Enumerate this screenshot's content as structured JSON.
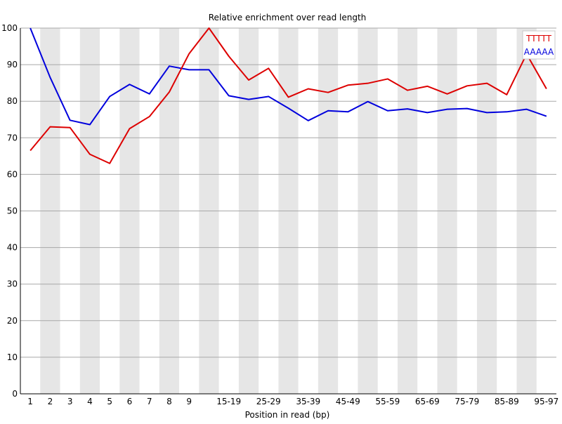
{
  "chart_data": {
    "type": "line",
    "title": "Relative enrichment over read length",
    "xlabel": "Position in read (bp)",
    "ylabel": "",
    "ylim": [
      0,
      100
    ],
    "yticks": [
      0,
      10,
      20,
      30,
      40,
      50,
      60,
      70,
      80,
      90,
      100
    ],
    "grid": true,
    "legend_position": "top-right",
    "categories": [
      "1",
      "2",
      "3",
      "4",
      "5",
      "6",
      "7",
      "8",
      "9",
      "10-14",
      "15-19",
      "20-24",
      "25-29",
      "30-34",
      "35-39",
      "40-44",
      "45-49",
      "50-54",
      "55-59",
      "60-64",
      "65-69",
      "70-74",
      "75-79",
      "80-84",
      "85-89",
      "90-94",
      "95-97"
    ],
    "xtick_labels": [
      "1",
      "2",
      "3",
      "4",
      "5",
      "6",
      "7",
      "8",
      "9",
      "",
      "15-19",
      "",
      "25-29",
      "",
      "35-39",
      "",
      "45-49",
      "",
      "55-59",
      "",
      "65-69",
      "",
      "75-79",
      "",
      "85-89",
      "",
      "95-97"
    ],
    "series": [
      {
        "name": "TTTTT",
        "color": "#dd0000",
        "values": [
          66.5,
          73.0,
          72.8,
          65.5,
          63.0,
          72.5,
          75.8,
          82.5,
          93.0,
          100.0,
          92.3,
          85.8,
          89.0,
          81.1,
          83.4,
          82.4,
          84.4,
          84.9,
          86.1,
          83.0,
          84.1,
          82.0,
          84.2,
          84.9,
          81.8,
          92.9,
          83.4
        ]
      },
      {
        "name": "AAAAA",
        "color": "#0000dd",
        "values": [
          100.0,
          86.5,
          74.8,
          73.6,
          81.3,
          84.6,
          82.0,
          89.6,
          88.6,
          88.6,
          81.5,
          80.5,
          81.3,
          78.1,
          74.7,
          77.4,
          77.1,
          79.9,
          77.4,
          77.9,
          76.9,
          77.8,
          78.0,
          76.9,
          77.1,
          77.8,
          75.9
        ]
      }
    ]
  }
}
